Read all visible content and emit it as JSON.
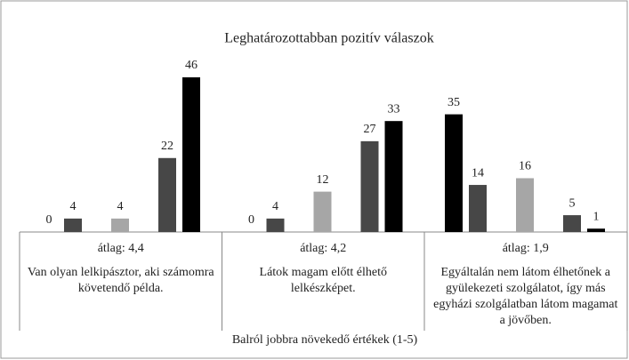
{
  "chart_data": {
    "type": "bar",
    "title": "Leghatározottabban pozitív válaszok",
    "x_label": "Balról jobbra növekedő értékek (1-5)",
    "categories": [
      "Van olyan lelkipásztor, aki számomra követendő példa.",
      "Látok magam előtt élhető lelkészképet.",
      "Egyáltalán nem látom élhetőnek a gyülekezeti szolgálatot, így más egyházi szolgálatban látom magamat a jövőben."
    ],
    "category_notes": [
      "átlag: 4,4",
      "átlag: 4,2",
      "átlag: 1,9"
    ],
    "series": [
      {
        "color": "#000000",
        "values": [
          0,
          0,
          35
        ]
      },
      {
        "color": "#474747",
        "values": [
          4,
          4,
          14
        ]
      },
      {
        "color": "#a6a6a6",
        "values": [
          4,
          12,
          16
        ]
      },
      {
        "color": "#474747",
        "values": [
          22,
          27,
          5
        ]
      },
      {
        "color": "#000000",
        "values": [
          46,
          33,
          1
        ]
      }
    ]
  }
}
